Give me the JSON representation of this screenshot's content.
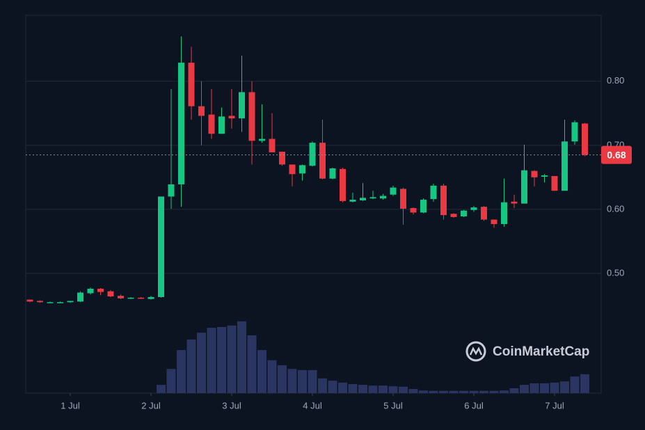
{
  "chart_data": {
    "type": "candlestick",
    "categories": [
      null,
      null,
      null,
      null,
      "1 Jul",
      null,
      null,
      null,
      null,
      null,
      null,
      null,
      "2 Jul",
      null,
      null,
      null,
      null,
      null,
      null,
      null,
      "3 Jul",
      null,
      null,
      null,
      null,
      null,
      null,
      null,
      "4 Jul",
      null,
      null,
      null,
      null,
      null,
      null,
      null,
      "5 Jul",
      null,
      null,
      null,
      null,
      null,
      null,
      null,
      "6 Jul",
      null,
      null,
      null,
      null,
      null,
      null,
      null,
      "7 Jul",
      null,
      null,
      null
    ],
    "open": [
      0.459,
      0.457,
      0.455,
      0.455,
      0.455,
      0.456,
      0.469,
      0.476,
      0.472,
      0.465,
      0.461,
      0.462,
      0.46,
      0.463,
      0.62,
      0.639,
      0.829,
      0.761,
      0.748,
      0.718,
      0.746,
      0.742,
      0.783,
      0.707,
      0.71,
      0.69,
      0.67,
      0.656,
      0.668,
      0.704,
      0.648,
      0.663,
      0.612,
      0.614,
      0.617,
      0.617,
      0.623,
      0.632,
      0.602,
      0.595,
      0.616,
      0.637,
      0.593,
      0.589,
      0.599,
      0.604,
      0.584,
      0.577,
      0.612,
      0.609,
      0.66,
      0.651,
      0.652,
      0.629,
      0.706,
      0.734
    ],
    "high": [
      0.459,
      0.458,
      0.456,
      0.456,
      0.457,
      0.472,
      0.478,
      0.477,
      0.474,
      0.467,
      0.463,
      0.463,
      0.465,
      0.62,
      0.788,
      0.87,
      0.854,
      0.8,
      0.788,
      0.759,
      0.788,
      0.84,
      0.8,
      0.764,
      0.75,
      0.69,
      0.67,
      0.67,
      0.706,
      0.74,
      0.665,
      0.665,
      0.626,
      0.641,
      0.629,
      0.624,
      0.637,
      0.634,
      0.603,
      0.617,
      0.64,
      0.64,
      0.594,
      0.599,
      0.605,
      0.605,
      0.584,
      0.648,
      0.623,
      0.701,
      0.661,
      0.655,
      0.652,
      0.74,
      0.739,
      0.735
    ],
    "low": [
      0.455,
      0.454,
      0.454,
      0.454,
      0.454,
      0.455,
      0.467,
      0.466,
      0.463,
      0.46,
      0.46,
      0.46,
      0.459,
      0.462,
      0.601,
      0.604,
      0.74,
      0.7,
      0.71,
      0.718,
      0.726,
      0.721,
      0.67,
      0.704,
      0.689,
      0.668,
      0.636,
      0.645,
      0.667,
      0.647,
      0.647,
      0.611,
      0.611,
      0.613,
      0.616,
      0.615,
      0.621,
      0.576,
      0.592,
      0.594,
      0.612,
      0.584,
      0.587,
      0.588,
      0.596,
      0.582,
      0.571,
      0.573,
      0.602,
      0.609,
      0.636,
      0.642,
      0.629,
      0.629,
      0.701,
      0.683
    ],
    "close": [
      0.456,
      0.455,
      0.455,
      0.455,
      0.457,
      0.47,
      0.476,
      0.471,
      0.464,
      0.461,
      0.462,
      0.461,
      0.463,
      0.62,
      0.639,
      0.829,
      0.761,
      0.746,
      0.718,
      0.745,
      0.742,
      0.783,
      0.707,
      0.71,
      0.689,
      0.67,
      0.655,
      0.669,
      0.704,
      0.648,
      0.664,
      0.613,
      0.615,
      0.618,
      0.619,
      0.621,
      0.634,
      0.601,
      0.595,
      0.615,
      0.637,
      0.591,
      0.588,
      0.598,
      0.603,
      0.584,
      0.577,
      0.611,
      0.609,
      0.661,
      0.65,
      0.653,
      0.629,
      0.706,
      0.736,
      0.685
    ],
    "volume": [
      0,
      0,
      0,
      0,
      0,
      0,
      0,
      0,
      0,
      0,
      0,
      0,
      0,
      2.2,
      6.4,
      11.4,
      14.2,
      16.0,
      17.3,
      17.5,
      17.9,
      19.0,
      15.3,
      11.4,
      8.7,
      7.4,
      6.4,
      6.1,
      6.1,
      3.9,
      3.3,
      2.8,
      2.4,
      2.2,
      2.0,
      2.0,
      1.8,
      1.7,
      1.1,
      0.7,
      0.6,
      0.6,
      0.6,
      0.6,
      0.6,
      0.6,
      0.6,
      0.7,
      1.3,
      2.2,
      2.6,
      2.6,
      2.8,
      3.1,
      4.4,
      5.0
    ],
    "up_color": "#16c784",
    "down_color": "#ea3943",
    "volume_color": "#2a3562",
    "ylim": [
      0.313,
      0.903
    ],
    "yticks": [
      {
        "value": 0.5,
        "label": "0.50"
      },
      {
        "value": 0.6,
        "label": "0.60"
      },
      {
        "value": 0.7,
        "label": "0.70"
      },
      {
        "value": 0.8,
        "label": "0.80"
      }
    ],
    "y2lim": [
      0,
      100
    ],
    "grid": true,
    "price_line": {
      "value": 0.685,
      "label": "0.68"
    },
    "watermark": "CoinMarketCap"
  }
}
